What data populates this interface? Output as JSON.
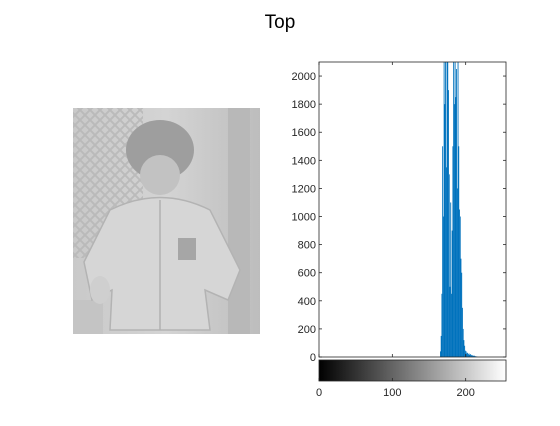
{
  "figure": {
    "title": "Top"
  },
  "image_panel": {
    "icon": "grayscale-photo-child-in-jacket"
  },
  "chart_data": {
    "type": "histogram",
    "title": "Top",
    "xlabel": "",
    "ylabel": "",
    "xlim": [
      0,
      255
    ],
    "ylim": [
      0,
      2100
    ],
    "yticks": [
      0,
      200,
      400,
      600,
      800,
      1000,
      1200,
      1400,
      1600,
      1800,
      2000
    ],
    "xticks": [
      0,
      100,
      200
    ],
    "bar_color": "#0072bd",
    "colorbar": {
      "from": "#000000",
      "to": "#ffffff",
      "range": [
        0,
        255
      ]
    },
    "bins": [
      {
        "x": 165,
        "y": 40
      },
      {
        "x": 166,
        "y": 150
      },
      {
        "x": 167,
        "y": 450
      },
      {
        "x": 168,
        "y": 1500
      },
      {
        "x": 169,
        "y": 1000
      },
      {
        "x": 170,
        "y": 2100
      },
      {
        "x": 171,
        "y": 1800
      },
      {
        "x": 172,
        "y": 2100
      },
      {
        "x": 173,
        "y": 1350
      },
      {
        "x": 174,
        "y": 2100
      },
      {
        "x": 175,
        "y": 2100
      },
      {
        "x": 176,
        "y": 1900
      },
      {
        "x": 177,
        "y": 1300
      },
      {
        "x": 178,
        "y": 500
      },
      {
        "x": 179,
        "y": 1100
      },
      {
        "x": 180,
        "y": 450
      },
      {
        "x": 181,
        "y": 900
      },
      {
        "x": 182,
        "y": 1500
      },
      {
        "x": 183,
        "y": 2100
      },
      {
        "x": 184,
        "y": 1800
      },
      {
        "x": 185,
        "y": 2100
      },
      {
        "x": 186,
        "y": 1850
      },
      {
        "x": 187,
        "y": 2050
      },
      {
        "x": 188,
        "y": 1200
      },
      {
        "x": 189,
        "y": 2100
      },
      {
        "x": 190,
        "y": 1500
      },
      {
        "x": 191,
        "y": 1050
      },
      {
        "x": 192,
        "y": 1000
      },
      {
        "x": 193,
        "y": 700
      },
      {
        "x": 194,
        "y": 600
      },
      {
        "x": 195,
        "y": 350
      },
      {
        "x": 196,
        "y": 200
      },
      {
        "x": 197,
        "y": 120
      },
      {
        "x": 198,
        "y": 80
      },
      {
        "x": 199,
        "y": 45
      },
      {
        "x": 200,
        "y": 40
      },
      {
        "x": 201,
        "y": 25
      },
      {
        "x": 202,
        "y": 30
      },
      {
        "x": 203,
        "y": 20
      },
      {
        "x": 204,
        "y": 25
      },
      {
        "x": 205,
        "y": 15
      },
      {
        "x": 206,
        "y": 20
      },
      {
        "x": 207,
        "y": 15
      },
      {
        "x": 208,
        "y": 10
      },
      {
        "x": 209,
        "y": 12
      },
      {
        "x": 210,
        "y": 8
      },
      {
        "x": 211,
        "y": 10
      },
      {
        "x": 212,
        "y": 6
      },
      {
        "x": 213,
        "y": 5
      },
      {
        "x": 214,
        "y": 4
      },
      {
        "x": 215,
        "y": 3
      }
    ]
  }
}
